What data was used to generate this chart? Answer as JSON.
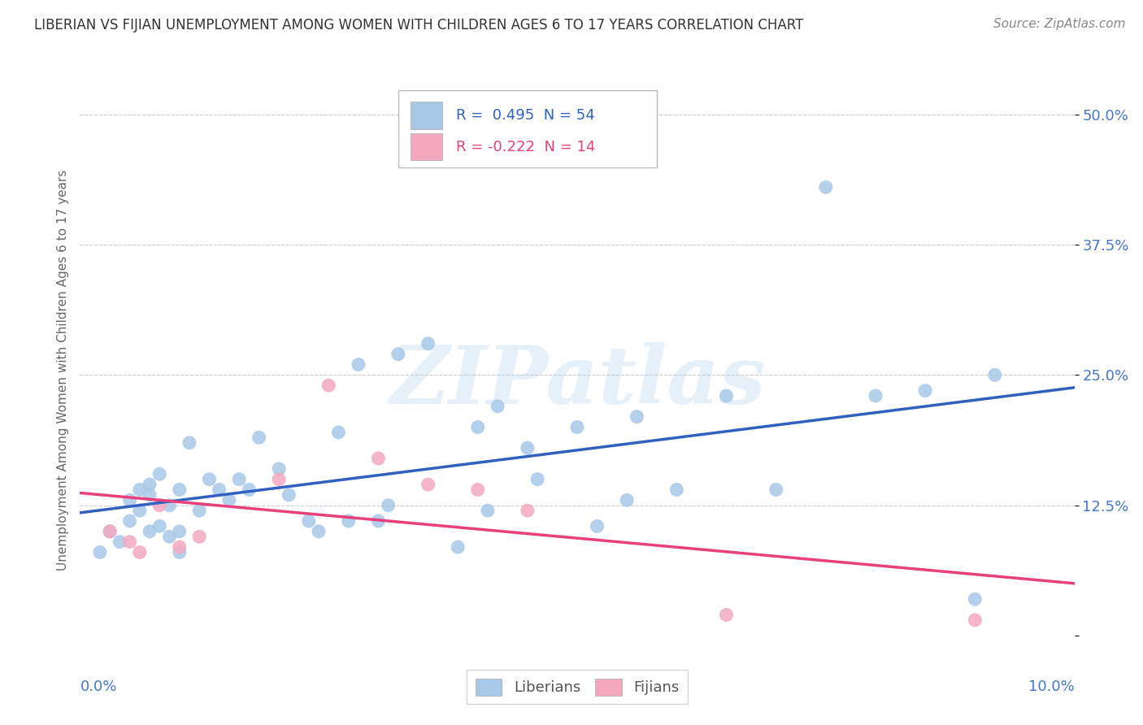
{
  "title": "LIBERIAN VS FIJIAN UNEMPLOYMENT AMONG WOMEN WITH CHILDREN AGES 6 TO 17 YEARS CORRELATION CHART",
  "source": "Source: ZipAtlas.com",
  "ylabel": "Unemployment Among Women with Children Ages 6 to 17 years",
  "xlim": [
    0.0,
    10.0
  ],
  "ylim": [
    -3.0,
    54.0
  ],
  "y_ticks": [
    0.0,
    12.5,
    25.0,
    37.5,
    50.0
  ],
  "y_tick_labels": [
    "",
    "12.5%",
    "25.0%",
    "37.5%",
    "50.0%"
  ],
  "liberian_color": "#A8C8E8",
  "fijian_color": "#F4A8C0",
  "liberian_line_color": "#3060C0",
  "fijian_line_color": "#E8407A",
  "liberian_R": 0.495,
  "liberian_N": 54,
  "fijian_R": -0.222,
  "fijian_N": 14,
  "legend_label_liberian": "Liberians",
  "legend_label_fijian": "Fijians",
  "watermark": "ZIPatlas",
  "liberian_x": [
    0.2,
    0.3,
    0.4,
    0.5,
    0.5,
    0.6,
    0.6,
    0.7,
    0.7,
    0.7,
    0.8,
    0.8,
    0.9,
    0.9,
    1.0,
    1.0,
    1.0,
    1.1,
    1.2,
    1.3,
    1.4,
    1.5,
    1.6,
    1.7,
    1.8,
    2.0,
    2.1,
    2.3,
    2.4,
    2.6,
    2.7,
    2.8,
    3.0,
    3.1,
    3.2,
    3.5,
    3.8,
    4.0,
    4.1,
    4.2,
    4.5,
    4.6,
    5.0,
    5.2,
    5.5,
    5.6,
    6.0,
    6.5,
    7.0,
    7.5,
    8.0,
    8.5,
    9.0,
    9.2
  ],
  "liberian_y": [
    8.0,
    10.0,
    9.0,
    11.0,
    13.0,
    12.0,
    14.0,
    10.0,
    13.5,
    14.5,
    10.5,
    15.5,
    9.5,
    12.5,
    8.0,
    10.0,
    14.0,
    18.5,
    12.0,
    15.0,
    14.0,
    13.0,
    15.0,
    14.0,
    19.0,
    16.0,
    13.5,
    11.0,
    10.0,
    19.5,
    11.0,
    26.0,
    11.0,
    12.5,
    27.0,
    28.0,
    8.5,
    20.0,
    12.0,
    22.0,
    18.0,
    15.0,
    20.0,
    10.5,
    13.0,
    21.0,
    14.0,
    23.0,
    14.0,
    43.0,
    23.0,
    23.5,
    3.5,
    25.0
  ],
  "fijian_x": [
    0.3,
    0.5,
    0.6,
    0.8,
    1.0,
    1.2,
    2.0,
    2.5,
    3.0,
    3.5,
    4.0,
    4.5,
    6.5,
    9.0
  ],
  "fijian_y": [
    10.0,
    9.0,
    8.0,
    12.5,
    8.5,
    9.5,
    15.0,
    24.0,
    17.0,
    14.5,
    14.0,
    12.0,
    2.0,
    1.5
  ],
  "background_color": "#FFFFFF",
  "grid_color": "#CCCCCC",
  "title_color": "#333333",
  "axis_label_color": "#4477CC"
}
